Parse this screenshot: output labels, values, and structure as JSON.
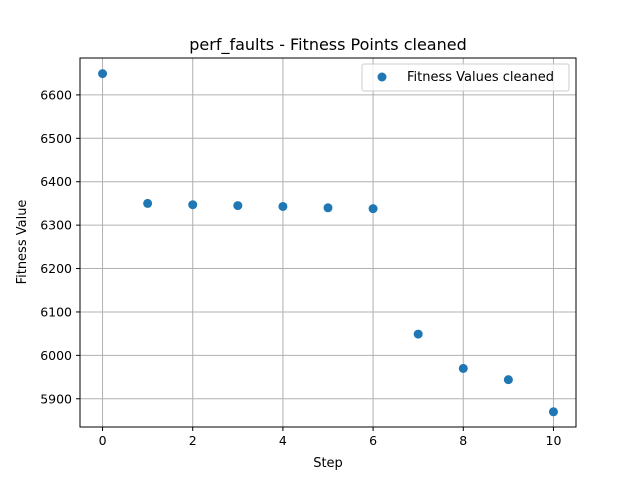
{
  "chart_data": {
    "type": "scatter",
    "title": "perf_faults - Fitness Points cleaned",
    "xlabel": "Step",
    "ylabel": "Fitness Value",
    "xlim": [
      -0.5,
      10.5
    ],
    "ylim": [
      5835,
      6685
    ],
    "xticks": [
      0,
      2,
      4,
      6,
      8,
      10
    ],
    "yticks": [
      5900,
      6000,
      6100,
      6200,
      6300,
      6400,
      6500,
      6600
    ],
    "grid": true,
    "legend": {
      "position": "top-right"
    },
    "series": [
      {
        "name": "Fitness Values cleaned",
        "color": "#1f77b4",
        "x": [
          0,
          1,
          2,
          3,
          4,
          5,
          6,
          7,
          8,
          9,
          10
        ],
        "y": [
          6649,
          6350,
          6347,
          6345,
          6343,
          6340,
          6338,
          6049,
          5970,
          5944,
          5870
        ]
      }
    ]
  }
}
